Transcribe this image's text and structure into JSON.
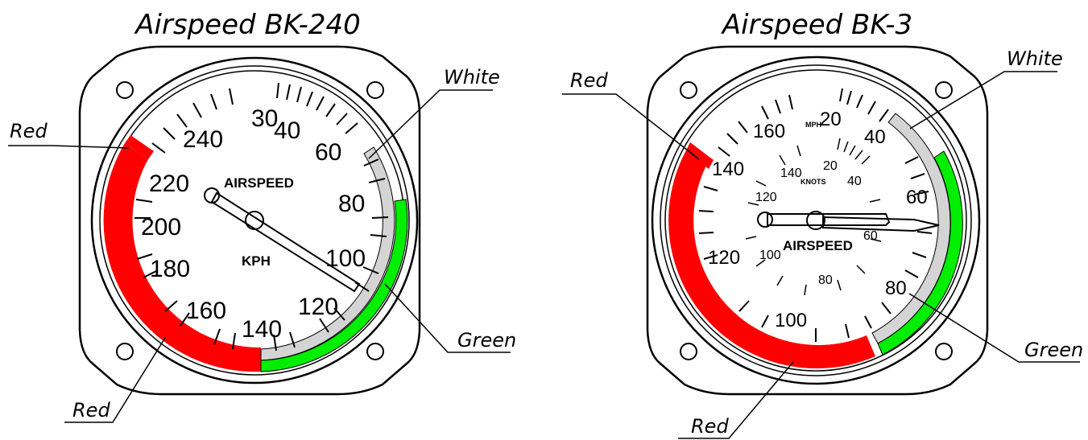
{
  "colors": {
    "red": "#ff0000",
    "green": "#00ee00",
    "white_band": "#d4d4d4",
    "outline": "#000000"
  },
  "gauges": [
    {
      "title": "Airspeed BK-240",
      "face_label": "AIRSPEED",
      "unit_label": "KPH",
      "scale_labels": [
        "30",
        "40",
        "60",
        "80",
        "100",
        "120",
        "140",
        "160",
        "180",
        "200",
        "220",
        "240"
      ],
      "callouts": [
        "Red",
        "Red",
        "White",
        "Green"
      ]
    },
    {
      "title": "Airspeed BK-3",
      "face_label": "AIRSPEED",
      "mph_label": "MPH",
      "knots_label": "KNOTS",
      "outer_scale_labels": [
        "20",
        "40",
        "60",
        "80",
        "100",
        "120",
        "140",
        "160"
      ],
      "inner_scale_labels": [
        "20",
        "40",
        "60",
        "80",
        "100",
        "120",
        "140"
      ],
      "callouts": [
        "Red",
        "Red",
        "White",
        "Green"
      ]
    }
  ]
}
